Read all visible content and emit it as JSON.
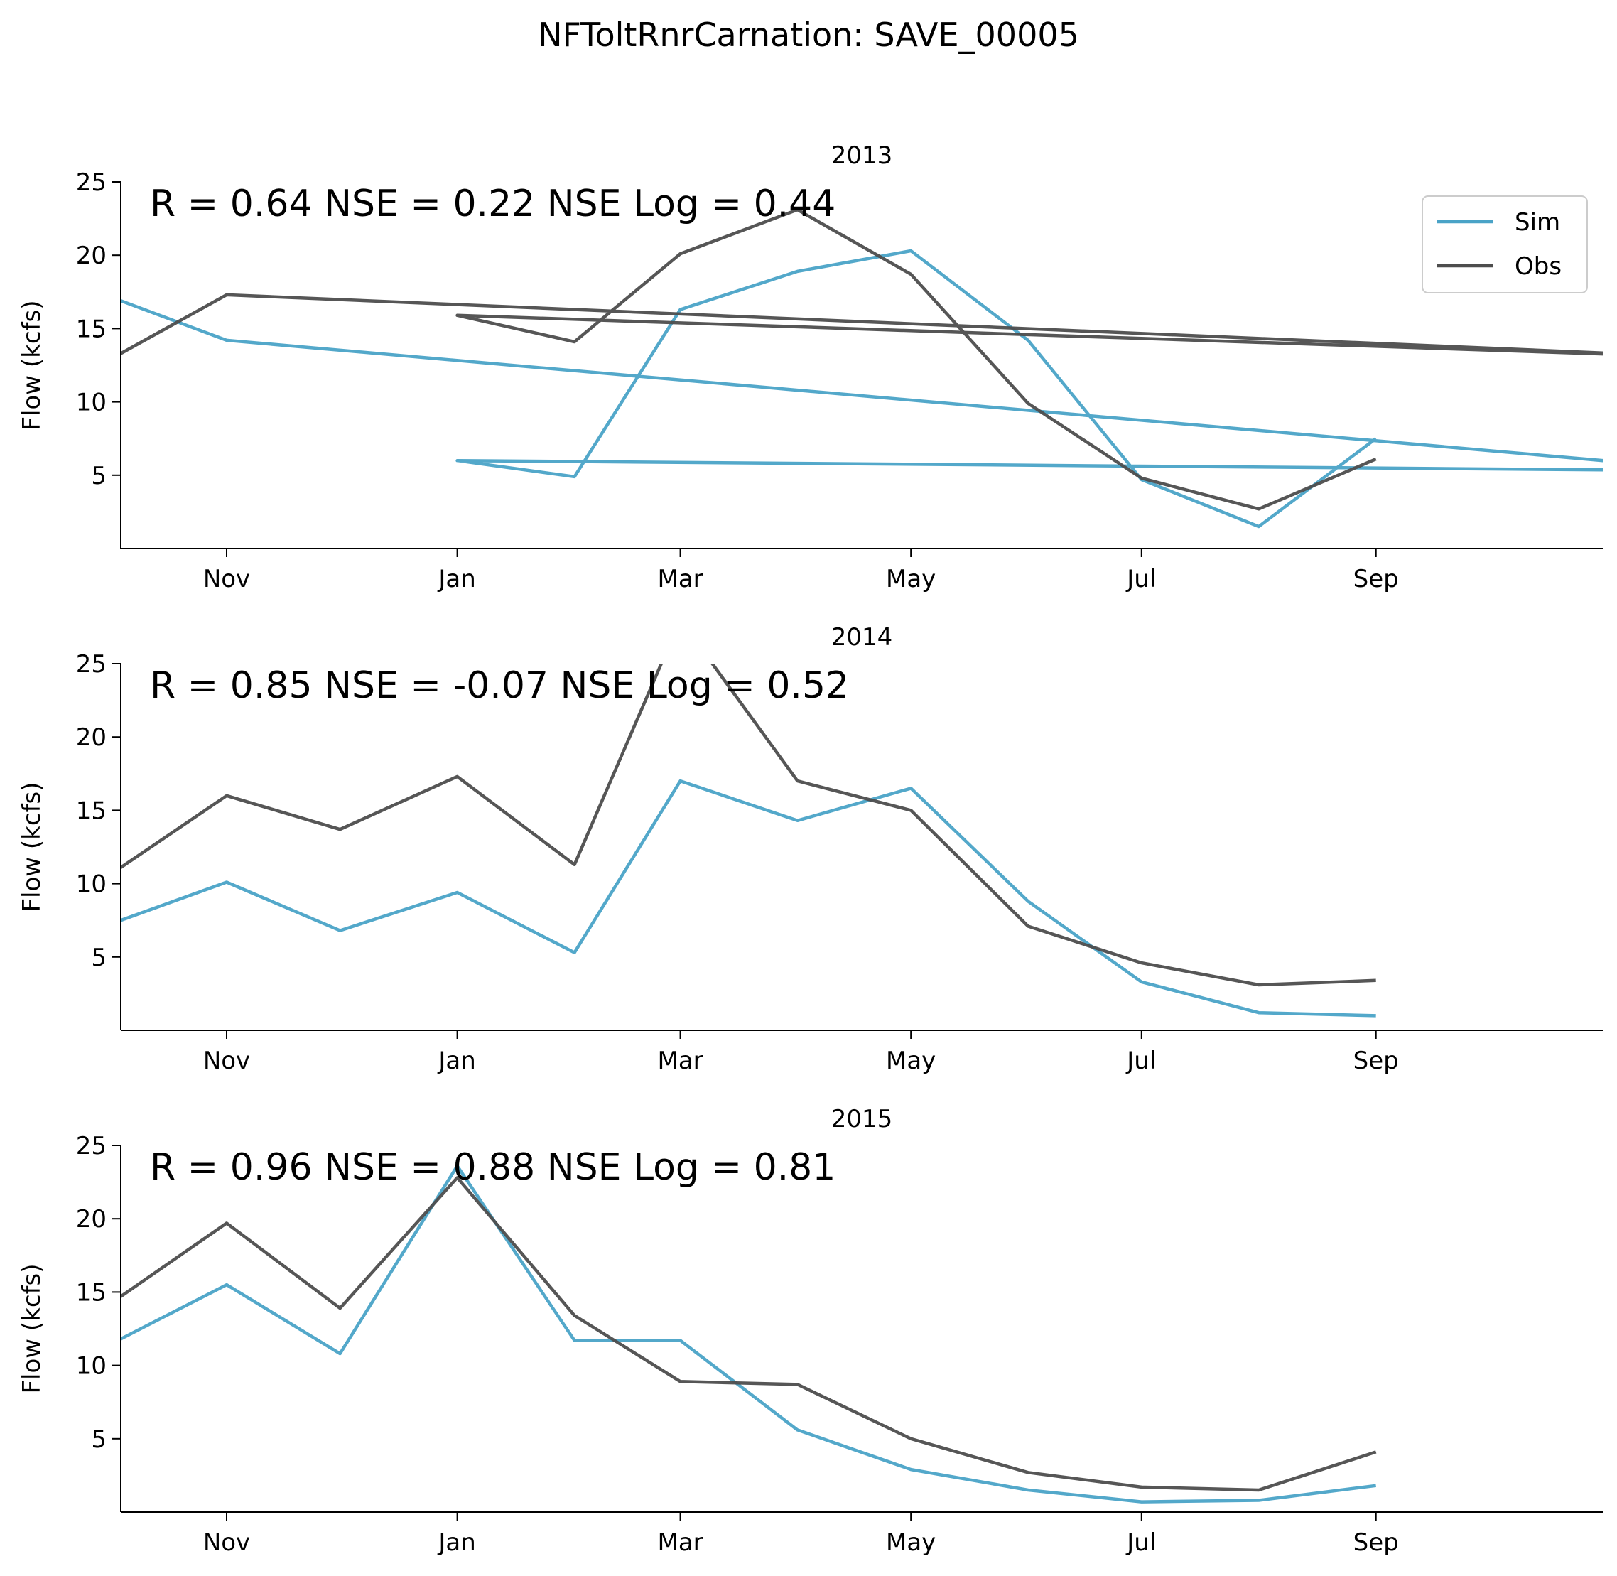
{
  "figure": {
    "title": "NFToltRnrCarnation: SAVE_00005"
  },
  "colors": {
    "sim": "#4aa3c7",
    "obs": "#4d4d4d"
  },
  "chart_data": [
    {
      "type": "line",
      "title": "2013",
      "annotation": "R = 0.64  NSE = 0.22  NSE Log = 0.44",
      "ylabel": "Flow (kcfs)",
      "ylim": [
        0,
        25
      ],
      "yticks": [
        5,
        10,
        15,
        20,
        25
      ],
      "xlim": [
        "2012-10-04",
        "2013-10-31"
      ],
      "xticks": [
        {
          "label": "Nov",
          "date": "2012-11-01"
        },
        {
          "label": "Jan",
          "date": "2013-01-01"
        },
        {
          "label": "Mar",
          "date": "2013-03-01"
        },
        {
          "label": "May",
          "date": "2013-05-01"
        },
        {
          "label": "Jul",
          "date": "2013-07-01"
        },
        {
          "label": "Sep",
          "date": "2013-09-01"
        }
      ],
      "legend": {
        "placement": "top-right",
        "entries": [
          "Sim",
          "Obs"
        ]
      },
      "grid": false,
      "series": [
        {
          "name": "Sim",
          "x": [
            "2012-10-04",
            "2012-11-01",
            "2013-12-01",
            "2013-01-01",
            "2013-02-01",
            "2013-03-01",
            "2013-04-01",
            "2013-05-01",
            "2013-06-01",
            "2013-07-01",
            "2013-08-01",
            "2013-09-01"
          ],
          "values": [
            16.9,
            14.2,
            5.3,
            6.0,
            4.9,
            16.3,
            18.9,
            20.3,
            14.2,
            4.7,
            1.5,
            7.5
          ]
        },
        {
          "name": "Obs",
          "x": [
            "2012-10-04",
            "2012-11-01",
            "2013-12-01",
            "2013-01-01",
            "2013-02-01",
            "2013-03-01",
            "2013-04-01",
            "2013-05-01",
            "2013-06-01",
            "2013-07-01",
            "2013-08-01",
            "2013-09-01"
          ],
          "values": [
            13.3,
            17.3,
            13.0,
            15.9,
            14.1,
            20.1,
            23.1,
            18.7,
            9.9,
            4.8,
            2.7,
            6.1
          ]
        }
      ]
    },
    {
      "type": "line",
      "title": "2014",
      "annotation": "R = 0.85  NSE = -0.07  NSE Log = 0.52",
      "ylabel": "Flow (kcfs)",
      "ylim": [
        0,
        25
      ],
      "yticks": [
        5,
        10,
        15,
        20,
        25
      ],
      "xlim": [
        "2013-10-04",
        "2014-10-31"
      ],
      "xticks": [
        {
          "label": "Nov",
          "date": "2013-11-01"
        },
        {
          "label": "Jan",
          "date": "2014-01-01"
        },
        {
          "label": "Mar",
          "date": "2014-03-01"
        },
        {
          "label": "May",
          "date": "2014-05-01"
        },
        {
          "label": "Jul",
          "date": "2014-07-01"
        },
        {
          "label": "Sep",
          "date": "2014-09-01"
        }
      ],
      "grid": false,
      "series": [
        {
          "name": "Sim",
          "x": [
            "2013-10-04",
            "2013-11-01",
            "2013-12-01",
            "2014-01-01",
            "2014-02-01",
            "2014-03-01",
            "2014-04-01",
            "2014-05-01",
            "2014-06-01",
            "2014-07-01",
            "2014-08-01",
            "2014-09-01"
          ],
          "values": [
            7.5,
            10.1,
            6.8,
            9.4,
            5.3,
            17.0,
            14.3,
            16.5,
            8.8,
            3.3,
            1.2,
            1.0
          ]
        },
        {
          "name": "Obs",
          "x": [
            "2013-10-04",
            "2013-11-01",
            "2013-12-01",
            "2014-01-01",
            "2014-02-01",
            "2014-03-01",
            "2014-04-01",
            "2014-05-01",
            "2014-06-01",
            "2014-07-01",
            "2014-08-01",
            "2014-09-01"
          ],
          "values": [
            11.1,
            16.0,
            13.7,
            17.3,
            11.3,
            28.0,
            17.0,
            15.0,
            7.1,
            4.6,
            3.1,
            3.4
          ]
        }
      ]
    },
    {
      "type": "line",
      "title": "2015",
      "annotation": "R = 0.96  NSE = 0.88  NSE Log = 0.81",
      "ylabel": "Flow (kcfs)",
      "ylim": [
        0,
        25
      ],
      "yticks": [
        5,
        10,
        15,
        20,
        25
      ],
      "xlim": [
        "2014-10-04",
        "2015-10-31"
      ],
      "xticks": [
        {
          "label": "Nov",
          "date": "2014-11-01"
        },
        {
          "label": "Jan",
          "date": "2015-01-01"
        },
        {
          "label": "Mar",
          "date": "2015-03-01"
        },
        {
          "label": "May",
          "date": "2015-05-01"
        },
        {
          "label": "Jul",
          "date": "2015-07-01"
        },
        {
          "label": "Sep",
          "date": "2015-09-01"
        }
      ],
      "grid": false,
      "series": [
        {
          "name": "Sim",
          "x": [
            "2014-10-04",
            "2014-11-01",
            "2014-12-01",
            "2015-01-01",
            "2015-02-01",
            "2015-03-01",
            "2015-04-01",
            "2015-05-01",
            "2015-06-01",
            "2015-07-01",
            "2015-08-01",
            "2015-09-01"
          ],
          "values": [
            11.8,
            15.5,
            10.8,
            23.6,
            11.7,
            11.7,
            5.6,
            2.9,
            1.5,
            0.7,
            0.8,
            1.8
          ]
        },
        {
          "name": "Obs",
          "x": [
            "2014-10-04",
            "2014-11-01",
            "2014-12-01",
            "2015-01-01",
            "2015-02-01",
            "2015-03-01",
            "2015-04-01",
            "2015-05-01",
            "2015-06-01",
            "2015-07-01",
            "2015-08-01",
            "2015-09-01"
          ],
          "values": [
            14.7,
            19.7,
            13.9,
            22.8,
            13.4,
            8.9,
            8.7,
            5.0,
            2.7,
            1.7,
            1.5,
            4.1
          ]
        }
      ]
    }
  ]
}
